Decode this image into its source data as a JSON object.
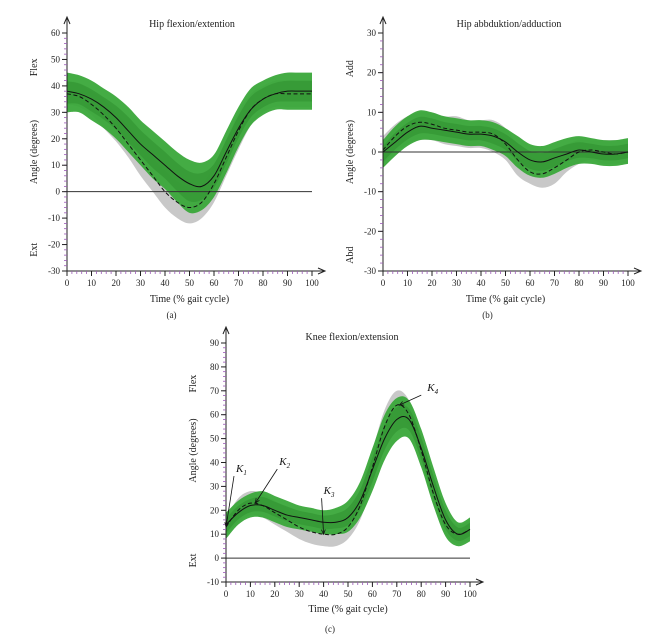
{
  "chart_data": [
    {
      "id": "a",
      "type": "line",
      "title": "Hip flexion/extention",
      "panel_label": "(a)",
      "xlabel": "Time (% gait cycle)",
      "ylabel": "Angle (degrees)",
      "ylabel_top": "Flex",
      "ylabel_bottom": "Ext",
      "xlim": [
        0,
        100
      ],
      "ylim": [
        -30,
        60
      ],
      "xticks": [
        0,
        10,
        20,
        30,
        40,
        50,
        60,
        70,
        80,
        90,
        100
      ],
      "yticks": [
        -30,
        -20,
        -10,
        0,
        10,
        20,
        30,
        40,
        50,
        60
      ],
      "x": [
        0,
        5,
        10,
        15,
        20,
        25,
        30,
        35,
        40,
        45,
        50,
        55,
        60,
        65,
        70,
        75,
        80,
        85,
        90,
        95,
        100
      ],
      "series": [
        {
          "name": "mean (solid)",
          "style": "solid",
          "values": [
            38,
            37,
            35,
            32,
            28,
            23,
            18,
            14,
            10,
            6,
            3,
            2,
            6,
            15,
            24,
            31,
            35,
            37,
            38,
            38,
            38
          ]
        },
        {
          "name": "mean (dashed)",
          "style": "dashed",
          "values": [
            37,
            36,
            33,
            29,
            24,
            18,
            12,
            6,
            0,
            -4,
            -6,
            -4,
            3,
            13,
            23,
            31,
            35,
            37,
            37,
            37,
            37
          ]
        }
      ],
      "bands": [
        {
          "name": "grey band",
          "color": "#c8c8c8",
          "lower": [
            33,
            32,
            29,
            24,
            19,
            13,
            6,
            0,
            -6,
            -10,
            -12,
            -10,
            -4,
            6,
            16,
            25,
            30,
            32,
            32,
            32,
            32
          ],
          "upper": [
            42,
            41,
            38,
            35,
            30,
            25,
            19,
            13,
            8,
            4,
            2,
            3,
            10,
            20,
            30,
            37,
            40,
            42,
            42,
            42,
            42
          ]
        },
        {
          "name": "green band",
          "color": "#3aa83a",
          "lower": [
            30,
            30,
            27,
            24,
            20,
            15,
            10,
            5,
            1,
            -4,
            -8,
            -7,
            -2,
            7,
            17,
            25,
            29,
            31,
            31,
            31,
            31
          ],
          "upper": [
            45,
            44,
            42,
            39,
            36,
            32,
            27,
            23,
            19,
            15,
            12,
            11,
            14,
            23,
            32,
            39,
            42,
            44,
            45,
            45,
            45
          ]
        }
      ]
    },
    {
      "id": "b",
      "type": "line",
      "title": "Hip abbduktion/adduction",
      "panel_label": "(b)",
      "xlabel": "Time (% gait cycle)",
      "ylabel": "Angle (degrees)",
      "ylabel_top": "Add",
      "ylabel_bottom": "Abd",
      "xlim": [
        0,
        100
      ],
      "ylim": [
        -30,
        30
      ],
      "xticks": [
        0,
        10,
        20,
        30,
        40,
        50,
        60,
        70,
        80,
        90,
        100
      ],
      "yticks": [
        -30,
        -20,
        -10,
        0,
        10,
        20,
        30
      ],
      "x": [
        0,
        5,
        10,
        15,
        20,
        25,
        30,
        35,
        40,
        45,
        50,
        55,
        60,
        65,
        70,
        75,
        80,
        85,
        90,
        95,
        100
      ],
      "series": [
        {
          "name": "mean (solid)",
          "style": "solid",
          "values": [
            0,
            2.5,
            5,
            6.5,
            6,
            5.5,
            5,
            4.5,
            4.5,
            4,
            2.5,
            0,
            -2,
            -2.5,
            -1.5,
            -0.5,
            0.5,
            0,
            -0.5,
            -0.5,
            0
          ]
        },
        {
          "name": "mean (dashed)",
          "style": "dashed",
          "values": [
            0.5,
            4,
            6.5,
            7.5,
            7,
            6,
            5.5,
            5,
            5,
            4.5,
            2,
            -2,
            -5,
            -5.5,
            -4,
            -2,
            0,
            0.5,
            0,
            -0.5,
            0
          ]
        }
      ],
      "bands": [
        {
          "name": "grey band",
          "color": "#c8c8c8",
          "lower": [
            -3,
            0,
            2,
            3,
            3,
            2,
            1.5,
            1,
            1,
            0,
            -2,
            -6,
            -8,
            -9,
            -8,
            -5,
            -3,
            -2,
            -3,
            -3,
            -3
          ],
          "upper": [
            4,
            7,
            9,
            10,
            10,
            9,
            9,
            8,
            8,
            8,
            6,
            2,
            -1,
            -2,
            0,
            2,
            3,
            3,
            3,
            3,
            3
          ]
        },
        {
          "name": "green band",
          "color": "#3aa83a",
          "lower": [
            -4,
            -1,
            1.5,
            3,
            3,
            2.5,
            2,
            1.5,
            1.5,
            0.5,
            -1,
            -4,
            -6,
            -6.5,
            -5.5,
            -4,
            -3,
            -3,
            -3.5,
            -3.5,
            -3
          ],
          "upper": [
            3,
            6.5,
            9,
            10.5,
            10,
            9,
            8.5,
            8,
            8,
            7.5,
            6,
            4,
            2,
            1.5,
            2.5,
            3.5,
            4,
            3.5,
            3,
            3,
            3.5
          ]
        }
      ]
    },
    {
      "id": "c",
      "type": "line",
      "title": "Knee flexion/extension",
      "panel_label": "(c)",
      "xlabel": "Time (% gait cycle)",
      "ylabel": "Angle (degrees)",
      "ylabel_top": "Flex",
      "ylabel_bottom": "Ext",
      "xlim": [
        0,
        100
      ],
      "ylim": [
        -10,
        90
      ],
      "xticks": [
        0,
        10,
        20,
        30,
        40,
        50,
        60,
        70,
        80,
        90,
        100
      ],
      "yticks": [
        -10,
        0,
        10,
        20,
        30,
        40,
        50,
        60,
        70,
        80,
        90
      ],
      "x": [
        0,
        5,
        10,
        15,
        20,
        25,
        30,
        35,
        40,
        45,
        50,
        55,
        60,
        65,
        70,
        75,
        80,
        85,
        90,
        95,
        100
      ],
      "series": [
        {
          "name": "mean (solid)",
          "style": "solid",
          "values": [
            14,
            19,
            22,
            22,
            20,
            18,
            17,
            16,
            15,
            15,
            17,
            24,
            37,
            50,
            58,
            58,
            46,
            30,
            16,
            10,
            12
          ]
        },
        {
          "name": "mean (dashed)",
          "style": "dashed",
          "values": [
            13,
            20,
            23,
            22,
            19,
            16,
            13,
            11,
            10,
            10,
            13,
            22,
            38,
            55,
            64,
            60,
            45,
            27,
            14,
            10,
            12
          ]
        }
      ],
      "bands": [
        {
          "name": "grey band",
          "color": "#c8c8c8",
          "lower": [
            9,
            15,
            18,
            17,
            14,
            11,
            8,
            6,
            5,
            5,
            8,
            16,
            31,
            49,
            58,
            55,
            40,
            22,
            10,
            6,
            8
          ],
          "upper": [
            17,
            25,
            28,
            27,
            24,
            21,
            18,
            16,
            15,
            16,
            19,
            28,
            45,
            62,
            70,
            66,
            51,
            33,
            19,
            14,
            16
          ]
        },
        {
          "name": "green band",
          "color": "#3aa83a",
          "lower": [
            8,
            14,
            17,
            17,
            15,
            13,
            12,
            11,
            10,
            10,
            11,
            17,
            28,
            41,
            49,
            50,
            38,
            22,
            9,
            5,
            7
          ],
          "upper": [
            19,
            24,
            27,
            28,
            26,
            24,
            22,
            21,
            20,
            21,
            24,
            32,
            46,
            60,
            67,
            66,
            54,
            38,
            23,
            15,
            17
          ]
        }
      ],
      "annotations": [
        {
          "label": "K",
          "sub": "1",
          "at": [
            0,
            13
          ]
        },
        {
          "label": "K",
          "sub": "2",
          "at": [
            12,
            23
          ]
        },
        {
          "label": "K",
          "sub": "3",
          "at": [
            40,
            10
          ]
        },
        {
          "label": "K",
          "sub": "4",
          "at": [
            71,
            64
          ]
        }
      ]
    }
  ]
}
